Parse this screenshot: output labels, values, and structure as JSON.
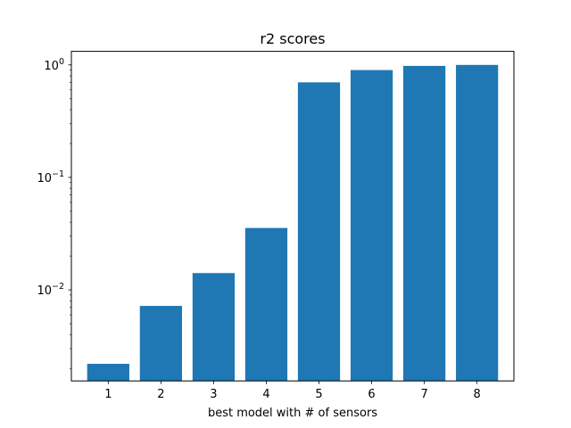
{
  "chart_data": {
    "type": "bar",
    "title": "r2 scores",
    "xlabel": "best model with # of sensors",
    "ylabel": "",
    "yscale": "log",
    "ylim": [
      0.00155,
      1.32
    ],
    "categories": [
      "1",
      "2",
      "3",
      "4",
      "5",
      "6",
      "7",
      "8"
    ],
    "values": [
      0.0022,
      0.0072,
      0.0141,
      0.0355,
      0.7,
      0.9,
      0.98,
      1.0
    ],
    "y_ticks": [
      {
        "value": 1,
        "base": "10",
        "exp": "0"
      },
      {
        "value": 0.1,
        "base": "10",
        "exp": "−1"
      },
      {
        "value": 0.01,
        "base": "10",
        "exp": "−2"
      }
    ],
    "bar_color": "#1f77b4",
    "grid": false,
    "legend": "none"
  }
}
